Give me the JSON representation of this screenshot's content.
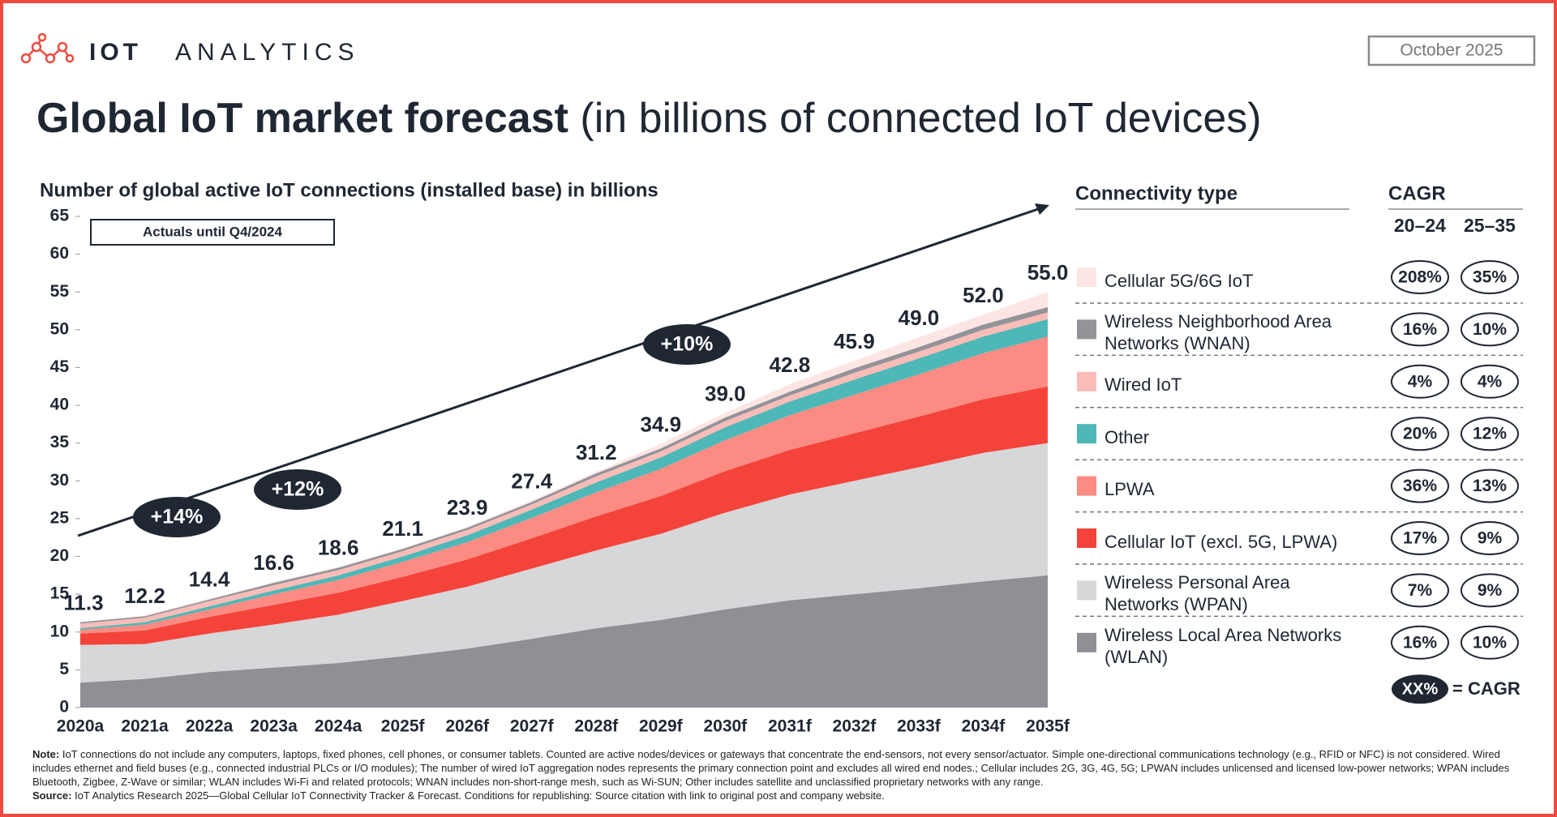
{
  "header": {
    "logo_bold": "IOT",
    "logo_light": "ANALYTICS",
    "date": "October 2025"
  },
  "chart_data": {
    "type": "stacked_area",
    "title": "Global IoT market forecast",
    "subtitle": "(in billions of connected IoT devices)",
    "y_label": "Number of global active IoT connections (installed base) in billions",
    "annotation": "Actuals until Q4/2024",
    "growth_labels": [
      "+14%",
      "+12%",
      "+10%"
    ],
    "categories": [
      "2020a",
      "2021a",
      "2022a",
      "2023a",
      "2024a",
      "2025f",
      "2026f",
      "2027f",
      "2028f",
      "2029f",
      "2030f",
      "2031f",
      "2032f",
      "2033f",
      "2034f",
      "2035f"
    ],
    "series": [
      {
        "name": "Wireless Local Area Networks (WLAN)",
        "color": "#8f9095",
        "values": [
          3.3,
          3.8,
          4.7,
          5.3,
          5.9,
          6.8,
          7.8,
          9.1,
          10.5,
          11.6,
          13.0,
          14.2,
          15.0,
          15.8,
          16.7,
          17.5
        ],
        "cagr": [
          16,
          10
        ],
        "cagr_labels": [
          "16%",
          "10%"
        ]
      },
      {
        "name": "Wireless Personal Area Networks (WPAN)",
        "color": "#d6d7d9",
        "values": [
          5.0,
          4.6,
          5.1,
          5.7,
          6.4,
          7.3,
          8.2,
          9.3,
          10.3,
          11.4,
          12.8,
          14.0,
          15.0,
          16.0,
          17.0,
          17.5
        ],
        "cagr": [
          7,
          9
        ],
        "cagr_labels": [
          "7%",
          "9%"
        ]
      },
      {
        "name": "Cellular IoT (excl. 5G, LPWA)",
        "color": "#f4433b",
        "values": [
          1.5,
          1.8,
          2.2,
          2.6,
          2.9,
          3.2,
          3.6,
          4.0,
          4.5,
          5.0,
          5.5,
          5.9,
          6.3,
          6.7,
          7.1,
          7.5
        ],
        "cagr": [
          17,
          9
        ],
        "cagr_labels": [
          "17%",
          "9%"
        ]
      },
      {
        "name": "LPWA",
        "color": "#fb8b83",
        "values": [
          0.5,
          0.8,
          1.0,
          1.4,
          1.7,
          2.0,
          2.3,
          2.7,
          3.2,
          3.6,
          4.1,
          4.6,
          5.1,
          5.6,
          6.1,
          6.6
        ],
        "cagr": [
          36,
          13
        ],
        "cagr_labels": [
          "36%",
          "13%"
        ]
      },
      {
        "name": "Other",
        "color": "#4db8b7",
        "values": [
          0.2,
          0.3,
          0.4,
          0.5,
          0.6,
          0.7,
          0.9,
          1.1,
          1.3,
          1.5,
          1.7,
          1.8,
          2.0,
          2.1,
          2.2,
          2.3
        ],
        "cagr": [
          20,
          12
        ],
        "cagr_labels": [
          "20%",
          "12%"
        ]
      },
      {
        "name": "Wired IoT",
        "color": "#f9bcb7",
        "values": [
          0.6,
          0.6,
          0.7,
          0.7,
          0.7,
          0.7,
          0.7,
          0.7,
          0.8,
          0.8,
          0.8,
          0.8,
          0.9,
          0.9,
          0.9,
          0.9
        ],
        "cagr": [
          4,
          4
        ],
        "cagr_labels": [
          "4%",
          "4%"
        ]
      },
      {
        "name": "Wireless Neighborhood Area Networks (WNAN)",
        "color": "#939399",
        "values": [
          0.2,
          0.2,
          0.2,
          0.3,
          0.3,
          0.3,
          0.3,
          0.3,
          0.4,
          0.4,
          0.5,
          0.5,
          0.6,
          0.6,
          0.7,
          0.7
        ],
        "cagr": [
          16,
          10
        ],
        "cagr_labels": [
          "16%",
          "10%"
        ]
      },
      {
        "name": "Cellular 5G/6G IoT",
        "color": "#fde5e3",
        "values": [
          0.0,
          0.1,
          0.1,
          0.1,
          0.1,
          0.1,
          0.1,
          0.2,
          0.2,
          0.6,
          0.6,
          1.0,
          1.0,
          1.3,
          1.3,
          2.0
        ],
        "cagr": [
          208,
          35
        ],
        "cagr_labels": [
          "208%",
          "35%"
        ]
      }
    ],
    "totals": [
      11.3,
      12.2,
      14.4,
      16.6,
      18.6,
      21.1,
      23.9,
      27.4,
      31.2,
      34.9,
      39.0,
      42.8,
      45.9,
      49.0,
      52.0,
      55.0
    ],
    "total_labels": [
      "11.3",
      "12.2",
      "14.4",
      "16.6",
      "18.6",
      "21.1",
      "23.9",
      "27.4",
      "31.2",
      "34.9",
      "39.0",
      "42.8",
      "45.9",
      "49.0",
      "52.0",
      "55.0"
    ],
    "ylim": [
      0,
      65
    ],
    "yticks": [
      0,
      5,
      10,
      15,
      20,
      25,
      30,
      35,
      40,
      45,
      50,
      55,
      60,
      65
    ],
    "legend_title": "Connectivity type",
    "cagr_title": "CAGR",
    "cagr_periods": [
      "20–24",
      "25–35"
    ],
    "cagr_key": {
      "sample": "XX%",
      "label": "= CAGR"
    }
  },
  "footer": {
    "note_label": "Note:",
    "note": "IoT connections do not include any computers, laptops, fixed phones, cell phones, or consumer tablets. Counted are active nodes/devices or gateways that concentrate the end-sensors, not every sensor/actuator. Simple one-directional communications technology (e.g., RFID or NFC) is not considered. Wired includes ethernet and field buses (e.g., connected industrial PLCs or I/O modules); The number of wired IoT aggregation nodes represents the primary connection point and excludes all wired end nodes.; Cellular includes 2G, 3G, 4G, 5G; LPWAN includes unlicensed and licensed low-power networks; WPAN includes Bluetooth, Zigbee, Z-Wave or similar; WLAN includes Wi-Fi and related protocols; WNAN includes non-short-range mesh, such as Wi-SUN; Other includes satellite and unclassified proprietary networks with any range.",
    "source_label": "Source:",
    "source": "IoT Analytics Research 2025—Global Cellular IoT Connectivity Tracker & Forecast. Conditions for republishing: Source citation with link to original post and company website."
  }
}
